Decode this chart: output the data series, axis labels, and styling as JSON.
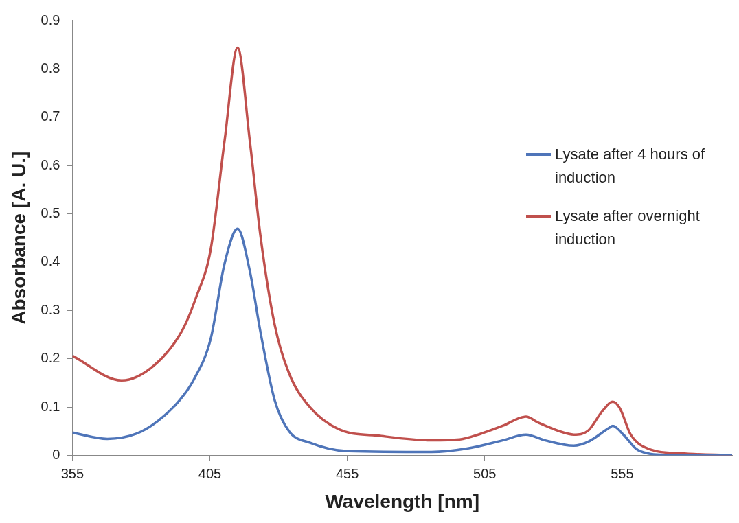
{
  "chart_data": {
    "type": "line",
    "xlabel": "Wavelength [nm]",
    "ylabel": "Absorbance [A. U.]",
    "xlim": [
      355,
      595
    ],
    "xticks": [
      355,
      405,
      455,
      505,
      555
    ],
    "ylim": [
      0,
      0.9
    ],
    "yticks": [
      0,
      0.1,
      0.2,
      0.3,
      0.4,
      0.5,
      0.6,
      0.7,
      0.8,
      0.9
    ],
    "grid": false,
    "legend": "right",
    "marker": "none",
    "series": [
      {
        "name": "Lysate after 4 hours of induction",
        "color": "#4f75b9",
        "x": [
          355,
          367.7,
          378.4,
          386.1,
          394,
          399.1,
          405.3,
          410.4,
          415.1,
          419.5,
          423.4,
          428.6,
          433.8,
          441.5,
          454.5,
          485.6,
          498.5,
          511.5,
          520,
          527,
          537.4,
          542.6,
          550.3,
          551.6,
          555.4,
          560.7,
          571,
          595
        ],
        "values": [
          0.047,
          0.034,
          0.045,
          0.071,
          0.114,
          0.156,
          0.241,
          0.398,
          0.469,
          0.383,
          0.256,
          0.114,
          0.05,
          0.026,
          0.009,
          0.007,
          0.014,
          0.031,
          0.043,
          0.031,
          0.02,
          0.028,
          0.057,
          0.061,
          0.043,
          0.011,
          0.001,
          0
        ]
      },
      {
        "name": "Lysate after overnight induction",
        "color": "#c0504d",
        "x": [
          355,
          372.9,
          384.5,
          394.9,
          400,
          405.3,
          410.4,
          415.1,
          419.5,
          423.4,
          428.6,
          433.8,
          441.5,
          451.9,
          467.4,
          485.6,
          495.9,
          503.7,
          511.5,
          520,
          524.4,
          532.2,
          537.4,
          542.6,
          547.7,
          551.6,
          554.2,
          558.1,
          565.9,
          576.2,
          595
        ],
        "values": [
          0.206,
          0.155,
          0.185,
          0.258,
          0.327,
          0.426,
          0.653,
          0.844,
          0.653,
          0.455,
          0.27,
          0.17,
          0.099,
          0.054,
          0.04,
          0.031,
          0.033,
          0.045,
          0.061,
          0.08,
          0.068,
          0.05,
          0.043,
          0.051,
          0.091,
          0.111,
          0.097,
          0.043,
          0.011,
          0.004,
          0
        ]
      }
    ]
  }
}
